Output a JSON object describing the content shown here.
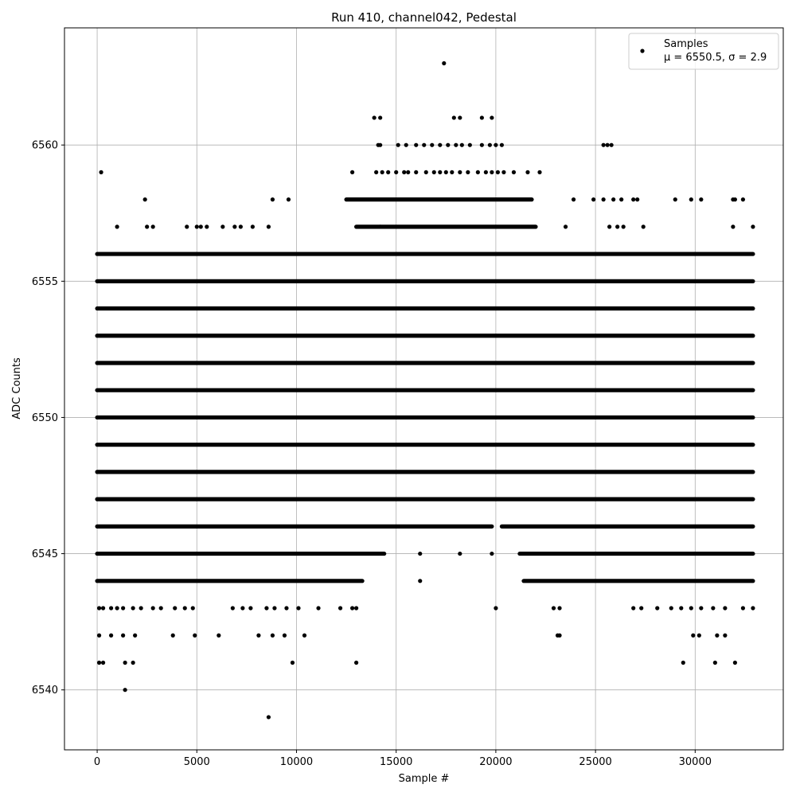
{
  "chart_data": {
    "type": "scatter",
    "title": "Run 410, channel042, Pedestal",
    "xlabel": "Sample #",
    "ylabel": "ADC Counts",
    "xlim": [
      -1640,
      34420
    ],
    "ylim": [
      6537.8,
      6564.3
    ],
    "xticks": [
      0,
      5000,
      10000,
      15000,
      20000,
      25000,
      30000
    ],
    "yticks": [
      6540,
      6545,
      6550,
      6555,
      6560
    ],
    "grid": true,
    "legend_position": "top-right",
    "marker_color": "#000000",
    "series": [
      {
        "name": "Samples",
        "stats_label": "μ = 6550.5, σ = 2.9",
        "x_range": [
          0,
          32900
        ],
        "level_spans": {
          "6544": [
            [
              0,
              13300
            ],
            [
              21400,
              32900
            ]
          ],
          "6545": [
            [
              0,
              14400
            ],
            [
              21200,
              32900
            ]
          ],
          "6546": [
            [
              0,
              19800
            ],
            [
              20300,
              32900
            ]
          ],
          "6547": [
            [
              0,
              32900
            ]
          ],
          "6548": [
            [
              0,
              32900
            ]
          ],
          "6549": [
            [
              0,
              32900
            ]
          ],
          "6550": [
            [
              0,
              32900
            ]
          ],
          "6551": [
            [
              0,
              32900
            ]
          ],
          "6552": [
            [
              0,
              32900
            ]
          ],
          "6553": [
            [
              0,
              32900
            ]
          ],
          "6554": [
            [
              0,
              32900
            ]
          ],
          "6555": [
            [
              0,
              32900
            ]
          ],
          "6556": [
            [
              0,
              32900
            ]
          ],
          "6557": [
            [
              13000,
              22000
            ]
          ],
          "6558": [
            [
              12500,
              21800
            ]
          ]
        },
        "points": [
          [
            1400,
            6540
          ],
          [
            8600,
            6539
          ],
          [
            17400,
            6563
          ],
          [
            100,
            6541
          ],
          [
            300,
            6541
          ],
          [
            1400,
            6541
          ],
          [
            1800,
            6541
          ],
          [
            9800,
            6541
          ],
          [
            13000,
            6541
          ],
          [
            29400,
            6541
          ],
          [
            31000,
            6541
          ],
          [
            32000,
            6541
          ],
          [
            100,
            6542
          ],
          [
            700,
            6542
          ],
          [
            1300,
            6542
          ],
          [
            1900,
            6542
          ],
          [
            3800,
            6542
          ],
          [
            4900,
            6542
          ],
          [
            6100,
            6542
          ],
          [
            8100,
            6542
          ],
          [
            8800,
            6542
          ],
          [
            9400,
            6542
          ],
          [
            10400,
            6542
          ],
          [
            23100,
            6542
          ],
          [
            23200,
            6542
          ],
          [
            29900,
            6542
          ],
          [
            30200,
            6542
          ],
          [
            31100,
            6542
          ],
          [
            31500,
            6542
          ],
          [
            100,
            6543
          ],
          [
            300,
            6543
          ],
          [
            700,
            6543
          ],
          [
            1000,
            6543
          ],
          [
            1300,
            6543
          ],
          [
            1800,
            6543
          ],
          [
            2200,
            6543
          ],
          [
            2800,
            6543
          ],
          [
            3200,
            6543
          ],
          [
            3900,
            6543
          ],
          [
            4400,
            6543
          ],
          [
            4800,
            6543
          ],
          [
            6800,
            6543
          ],
          [
            7300,
            6543
          ],
          [
            7700,
            6543
          ],
          [
            8500,
            6543
          ],
          [
            8900,
            6543
          ],
          [
            9500,
            6543
          ],
          [
            10100,
            6543
          ],
          [
            11100,
            6543
          ],
          [
            12200,
            6543
          ],
          [
            12800,
            6543
          ],
          [
            13000,
            6543
          ],
          [
            20000,
            6543
          ],
          [
            22900,
            6543
          ],
          [
            23200,
            6543
          ],
          [
            26900,
            6543
          ],
          [
            27300,
            6543
          ],
          [
            28100,
            6543
          ],
          [
            28800,
            6543
          ],
          [
            29300,
            6543
          ],
          [
            29800,
            6543
          ],
          [
            30300,
            6543
          ],
          [
            30900,
            6543
          ],
          [
            31500,
            6543
          ],
          [
            32400,
            6543
          ],
          [
            32900,
            6543
          ],
          [
            16200,
            6544
          ],
          [
            16200,
            6545
          ],
          [
            18200,
            6545
          ],
          [
            19800,
            6545
          ],
          [
            14200,
            6557
          ],
          [
            23500,
            6557
          ],
          [
            27400,
            6557
          ],
          [
            1000,
            6557
          ],
          [
            2500,
            6557
          ],
          [
            2800,
            6557
          ],
          [
            4500,
            6557
          ],
          [
            5000,
            6557
          ],
          [
            5200,
            6557
          ],
          [
            5500,
            6557
          ],
          [
            6300,
            6557
          ],
          [
            6900,
            6557
          ],
          [
            7200,
            6557
          ],
          [
            7800,
            6557
          ],
          [
            8600,
            6557
          ],
          [
            25700,
            6557
          ],
          [
            26100,
            6557
          ],
          [
            26400,
            6557
          ],
          [
            31900,
            6557
          ],
          [
            32900,
            6557
          ],
          [
            2400,
            6558
          ],
          [
            8800,
            6558
          ],
          [
            9600,
            6558
          ],
          [
            23900,
            6558
          ],
          [
            24900,
            6558
          ],
          [
            25400,
            6558
          ],
          [
            25900,
            6558
          ],
          [
            26300,
            6558
          ],
          [
            26900,
            6558
          ],
          [
            27100,
            6558
          ],
          [
            29000,
            6558
          ],
          [
            29800,
            6558
          ],
          [
            30300,
            6558
          ],
          [
            31900,
            6558
          ],
          [
            32000,
            6558
          ],
          [
            32400,
            6558
          ],
          [
            200,
            6559
          ],
          [
            12800,
            6559
          ],
          [
            14000,
            6559
          ],
          [
            14300,
            6559
          ],
          [
            14600,
            6559
          ],
          [
            15000,
            6559
          ],
          [
            15400,
            6559
          ],
          [
            15600,
            6559
          ],
          [
            16000,
            6559
          ],
          [
            16500,
            6559
          ],
          [
            16900,
            6559
          ],
          [
            17200,
            6559
          ],
          [
            17500,
            6559
          ],
          [
            17800,
            6559
          ],
          [
            18200,
            6559
          ],
          [
            18600,
            6559
          ],
          [
            19100,
            6559
          ],
          [
            19500,
            6559
          ],
          [
            19800,
            6559
          ],
          [
            20100,
            6559
          ],
          [
            20400,
            6559
          ],
          [
            20900,
            6559
          ],
          [
            21600,
            6559
          ],
          [
            22200,
            6559
          ],
          [
            14100,
            6560
          ],
          [
            14200,
            6560
          ],
          [
            15100,
            6560
          ],
          [
            15500,
            6560
          ],
          [
            16000,
            6560
          ],
          [
            16400,
            6560
          ],
          [
            16800,
            6560
          ],
          [
            17200,
            6560
          ],
          [
            17600,
            6560
          ],
          [
            18000,
            6560
          ],
          [
            18300,
            6560
          ],
          [
            18700,
            6560
          ],
          [
            19300,
            6560
          ],
          [
            19700,
            6560
          ],
          [
            20000,
            6560
          ],
          [
            20300,
            6560
          ],
          [
            25400,
            6560
          ],
          [
            25600,
            6560
          ],
          [
            25800,
            6560
          ],
          [
            13900,
            6561
          ],
          [
            14200,
            6561
          ],
          [
            17900,
            6561
          ],
          [
            18200,
            6561
          ],
          [
            19300,
            6561
          ],
          [
            19800,
            6561
          ]
        ]
      }
    ]
  }
}
